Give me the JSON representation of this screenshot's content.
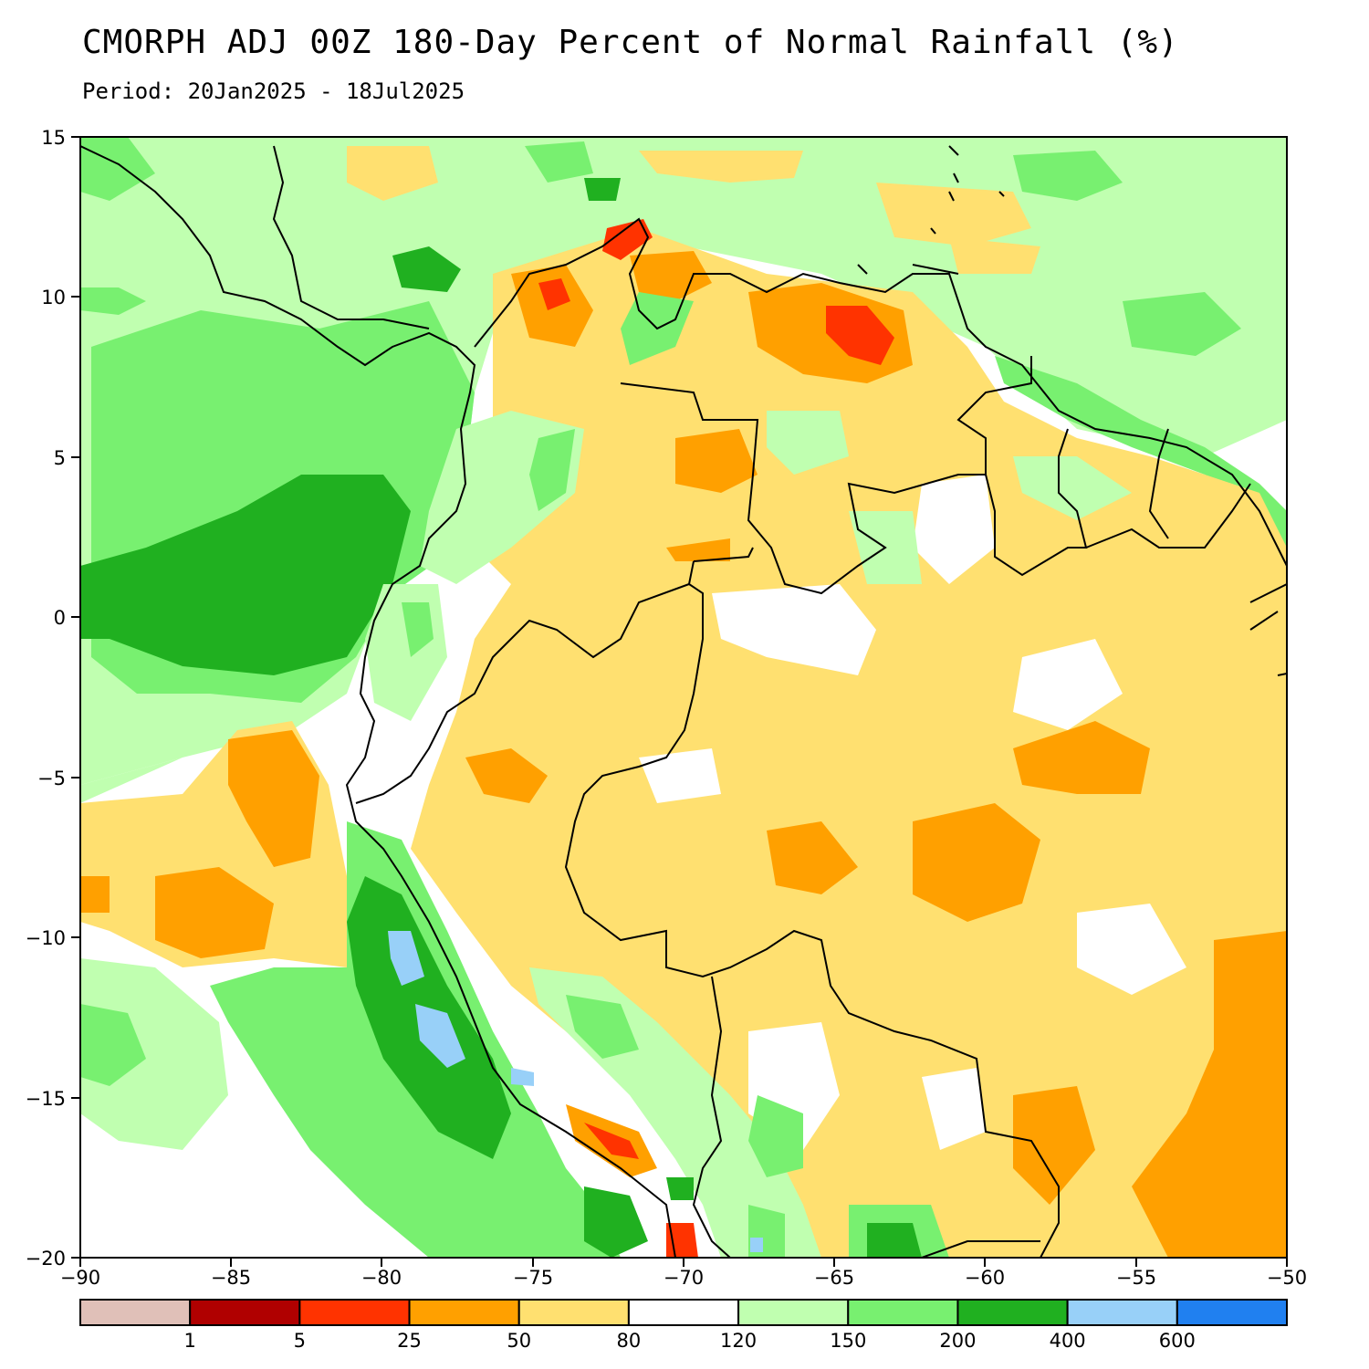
{
  "title": "CMORPH ADJ 00Z 180-Day Percent of Normal Rainfall (%)",
  "subtitle": "Period: 20Jan2025 - 18Jul2025",
  "map": {
    "lon_range": [
      -90,
      -50
    ],
    "lat_range": [
      -20,
      15
    ],
    "x_ticks": [
      "−90",
      "−85",
      "−80",
      "−75",
      "−70",
      "−65",
      "−60",
      "−55",
      "−50"
    ],
    "y_ticks": [
      "15",
      "10",
      "5",
      "0",
      "−5",
      "−10",
      "−15",
      "−20"
    ]
  },
  "legend": {
    "colors": [
      "#e0c0b8",
      "#b00000",
      "#ff3300",
      "#ffa000",
      "#ffe070",
      "#ffffff",
      "#c0ffb0",
      "#78f070",
      "#20b020",
      "#98d0f8",
      "#2080f0"
    ],
    "labels": [
      "1",
      "5",
      "25",
      "50",
      "80",
      "120",
      "150",
      "200",
      "400",
      "600"
    ]
  }
}
